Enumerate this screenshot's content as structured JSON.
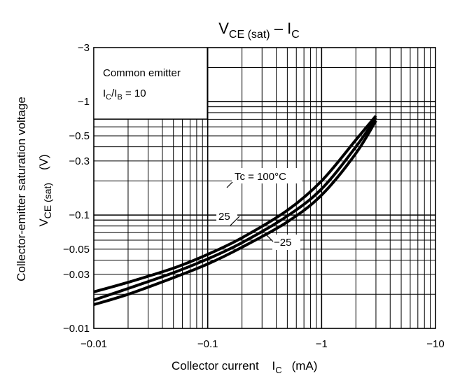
{
  "chart_data": {
    "type": "line",
    "title": {
      "main": "V",
      "main_sub": "CE (sat)",
      "dash": " – ",
      "end": "I",
      "end_sub": "C"
    },
    "xlabel": {
      "text": "Collector current",
      "var": "I",
      "var_sub": "C",
      "unit": "(mA)"
    },
    "ylabel": {
      "line1": "Collector-emitter saturation voltage",
      "var": "V",
      "var_sub": "CE (sat)",
      "unit": "(V)"
    },
    "x_scale": "log",
    "y_scale": "log",
    "xlim": [
      -0.01,
      -10
    ],
    "ylim": [
      -0.01,
      -3
    ],
    "x_ticks": [
      {
        "value": -0.01,
        "label": "−0.01"
      },
      {
        "value": -0.1,
        "label": "−0.1"
      },
      {
        "value": -1,
        "label": "−1"
      },
      {
        "value": -10,
        "label": "−10"
      }
    ],
    "y_ticks": [
      {
        "value": -3,
        "label": "−3"
      },
      {
        "value": -1,
        "label": "−1"
      },
      {
        "value": -0.5,
        "label": "−0.5"
      },
      {
        "value": -0.3,
        "label": "−0.3"
      },
      {
        "value": -0.1,
        "label": "−0.1"
      },
      {
        "value": -0.05,
        "label": "−0.05"
      },
      {
        "value": -0.03,
        "label": "−0.03"
      },
      {
        "value": -0.01,
        "label": "−0.01"
      }
    ],
    "grid": true,
    "conditions_box": {
      "line1": "Common emitter",
      "line2": {
        "a": "I",
        "a_sub": "C",
        "slash": "/I",
        "b_sub": "B",
        "rest": " = 10"
      }
    },
    "series": [
      {
        "name": "Tc = 100°C",
        "x": [
          -0.01,
          -0.02,
          -0.05,
          -0.1,
          -0.2,
          -0.5,
          -1,
          -2,
          -3
        ],
        "y": [
          -0.021,
          -0.0255,
          -0.034,
          -0.045,
          -0.063,
          -0.11,
          -0.2,
          -0.46,
          -0.75
        ]
      },
      {
        "name": "25",
        "x": [
          -0.01,
          -0.02,
          -0.05,
          -0.1,
          -0.2,
          -0.5,
          -1,
          -2,
          -3
        ],
        "y": [
          -0.0178,
          -0.0225,
          -0.031,
          -0.041,
          -0.057,
          -0.098,
          -0.17,
          -0.4,
          -0.72
        ]
      },
      {
        "name": "−25",
        "x": [
          -0.01,
          -0.02,
          -0.05,
          -0.1,
          -0.2,
          -0.5,
          -1,
          -2,
          -3
        ],
        "y": [
          -0.0162,
          -0.02,
          -0.028,
          -0.037,
          -0.052,
          -0.087,
          -0.15,
          -0.35,
          -0.68
        ]
      }
    ]
  }
}
